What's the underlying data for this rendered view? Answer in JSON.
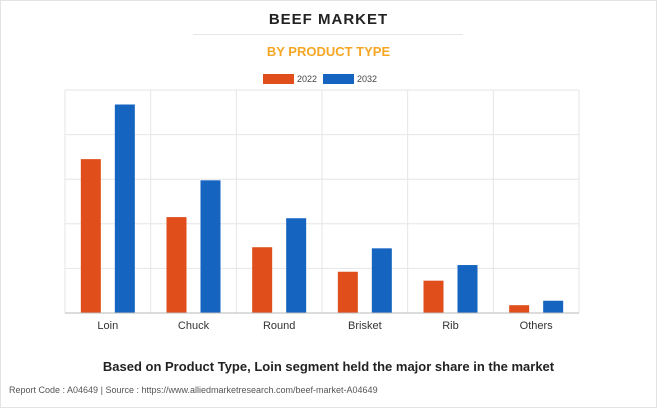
{
  "header": {
    "title": "BEEF MARKET",
    "subtitle": "BY PRODUCT TYPE"
  },
  "chart_data": {
    "type": "bar",
    "title": "BEEF MARKET",
    "subtitle": "BY PRODUCT TYPE",
    "categories": [
      "Loin",
      "Chuck",
      "Round",
      "Brisket",
      "Rib",
      "Others"
    ],
    "series": [
      {
        "name": "2022",
        "color": "#e04e1b",
        "values": [
          6.9,
          4.3,
          2.95,
          1.85,
          1.45,
          0.35
        ]
      },
      {
        "name": "2032",
        "color": "#1565c0",
        "values": [
          9.35,
          5.95,
          4.25,
          2.9,
          2.15,
          0.55
        ]
      }
    ],
    "ylim": [
      0,
      10
    ],
    "y_ticks": [
      0,
      2,
      4,
      6,
      8,
      10
    ],
    "y_tick_labels_shown": false,
    "grid": true,
    "legend_position": "top-center",
    "xlabel": "",
    "ylabel": ""
  },
  "caption": "Based on Product Type, Loin segment held the major share in the market",
  "footer": {
    "report_code": "Report Code : A04649",
    "separator": "|",
    "source": "Source : https://www.alliedmarketresearch.com/beef-market-A04649"
  }
}
